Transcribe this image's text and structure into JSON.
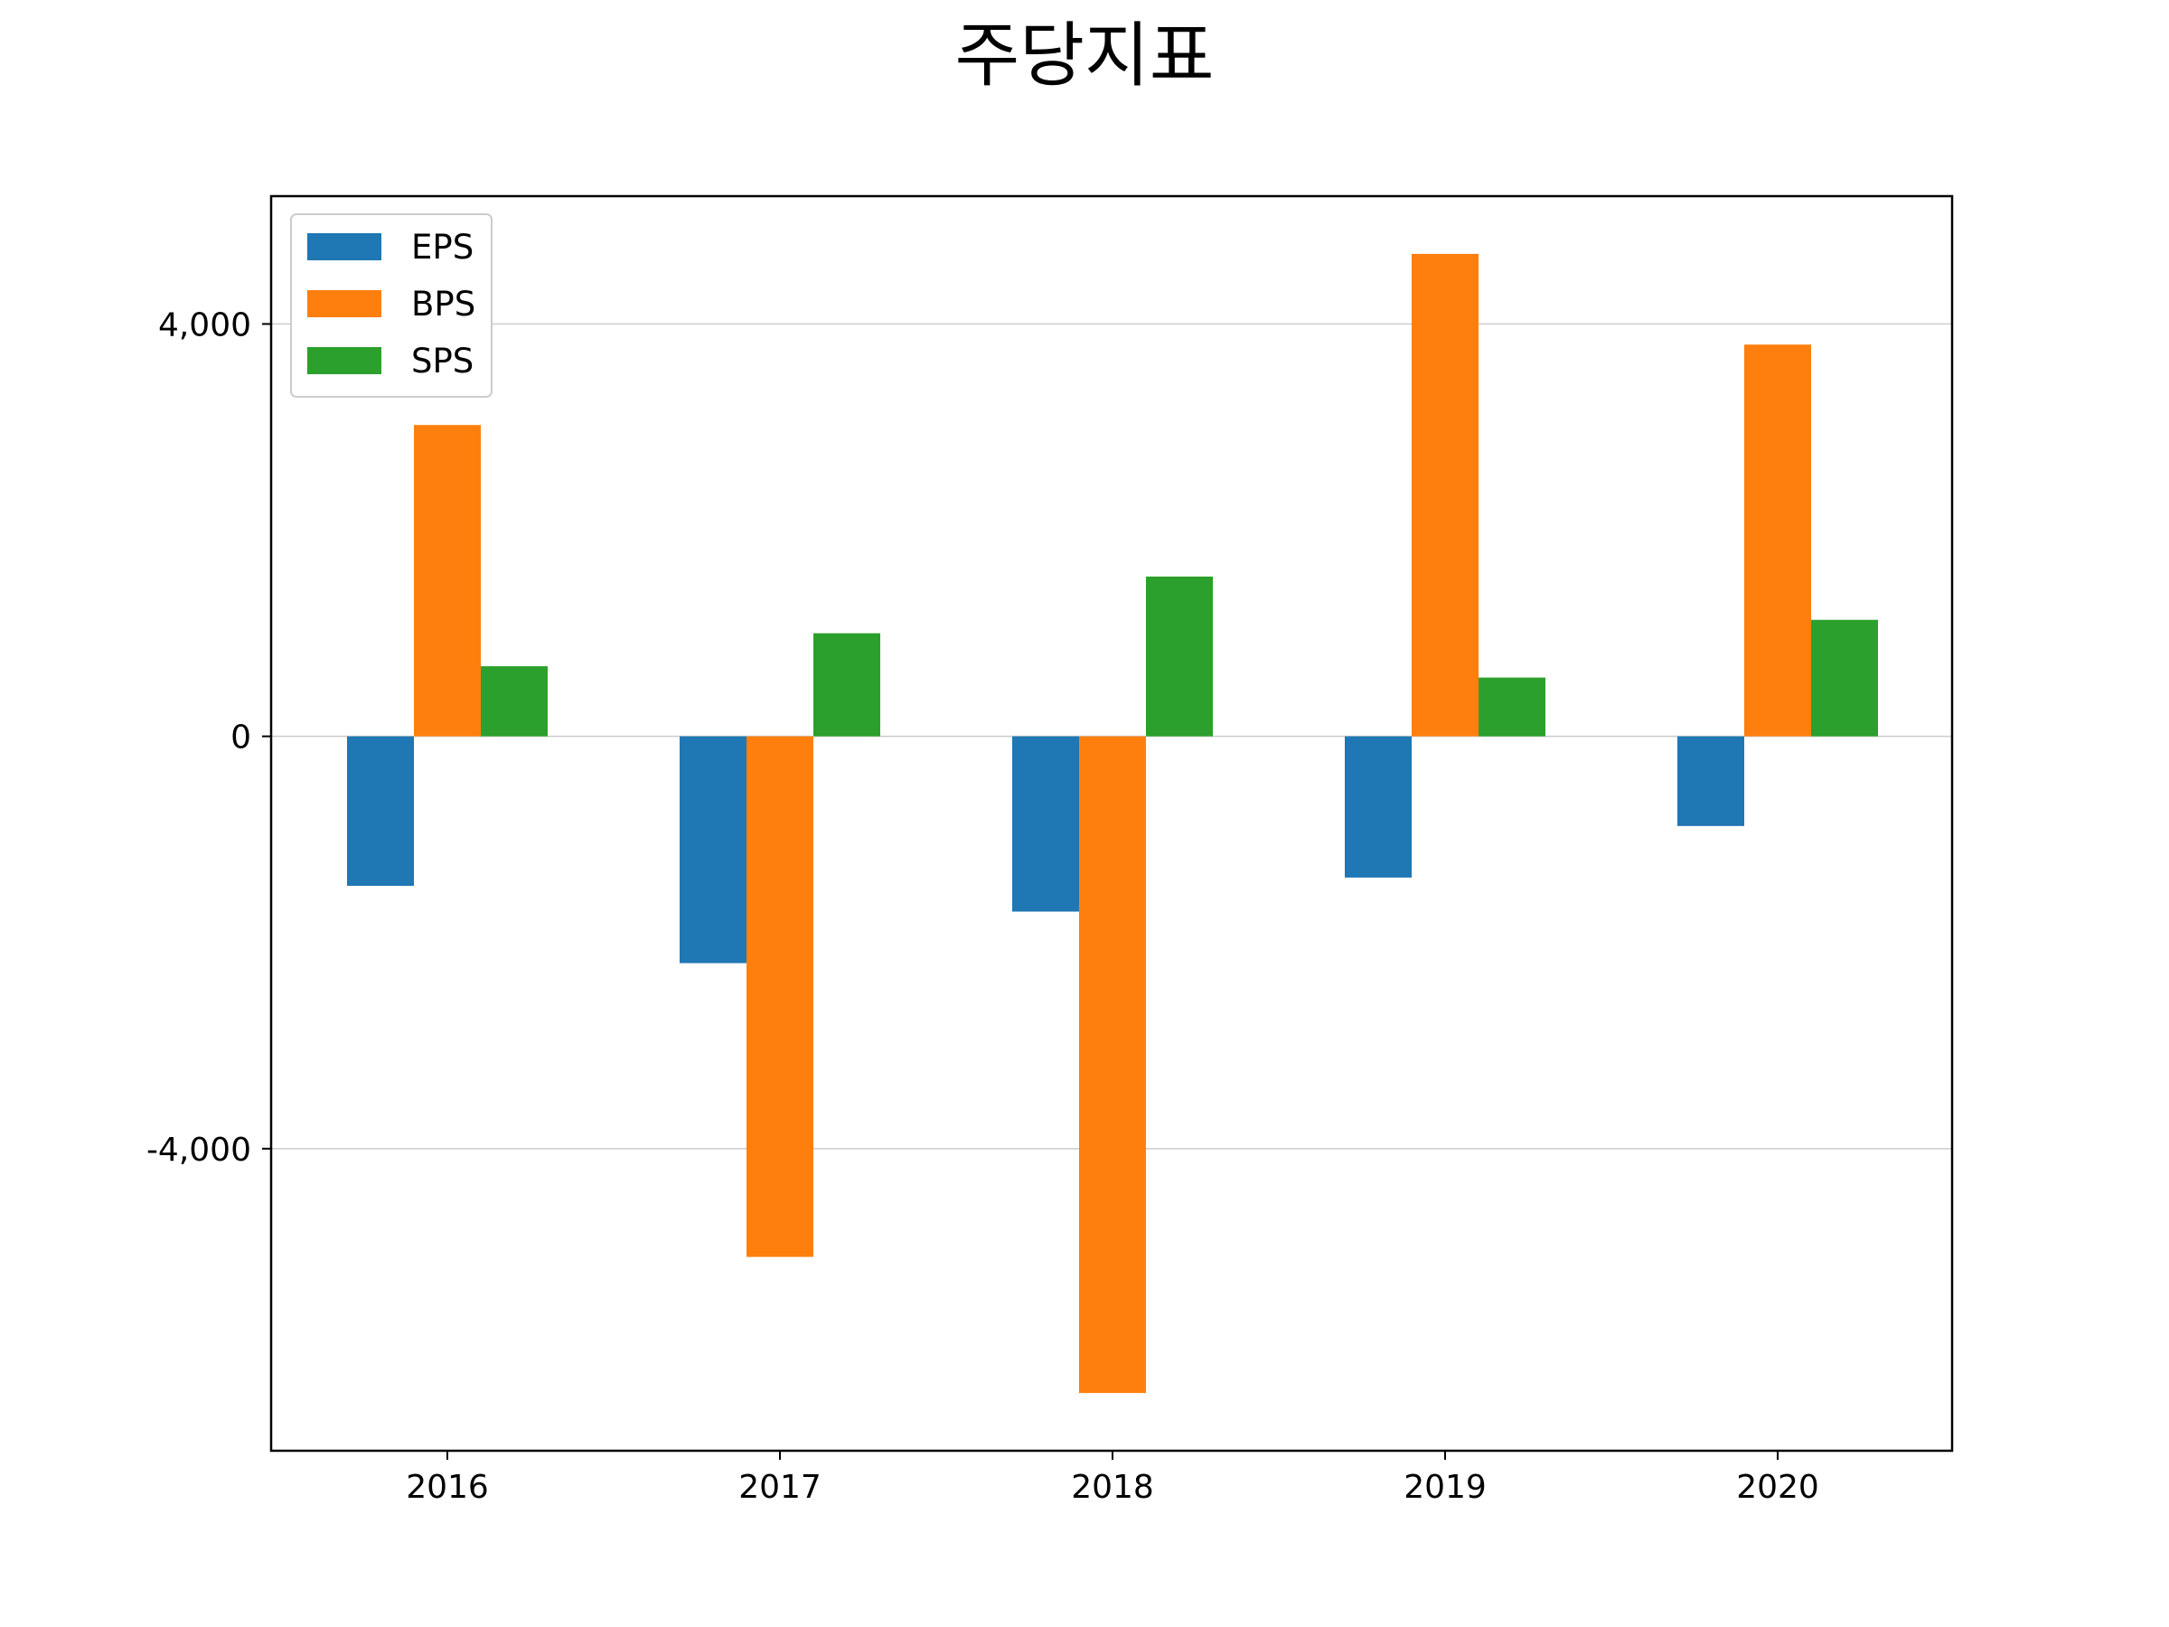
{
  "chart_data": {
    "type": "bar",
    "title": "주당지표",
    "xlabel": "",
    "ylabel": "",
    "categories": [
      "2016",
      "2017",
      "2018",
      "2019",
      "2020"
    ],
    "series": [
      {
        "name": "EPS",
        "color": "#1f77b4",
        "values": [
          -1450,
          -2200,
          -1700,
          -1370,
          -870
        ]
      },
      {
        "name": "BPS",
        "color": "#ff7f0e",
        "values": [
          3020,
          -5050,
          -6370,
          4680,
          3800
        ]
      },
      {
        "name": "SPS",
        "color": "#2ca02c",
        "values": [
          680,
          1000,
          1550,
          570,
          1130
        ]
      }
    ],
    "y_ticks": [
      {
        "value": 4000,
        "label": "4,000"
      },
      {
        "value": 0,
        "label": "0"
      },
      {
        "value": -4000,
        "label": "-4,000"
      }
    ],
    "ylim": [
      -6930,
      5240
    ],
    "grid": "horizontal",
    "legend_position": "top-left"
  }
}
